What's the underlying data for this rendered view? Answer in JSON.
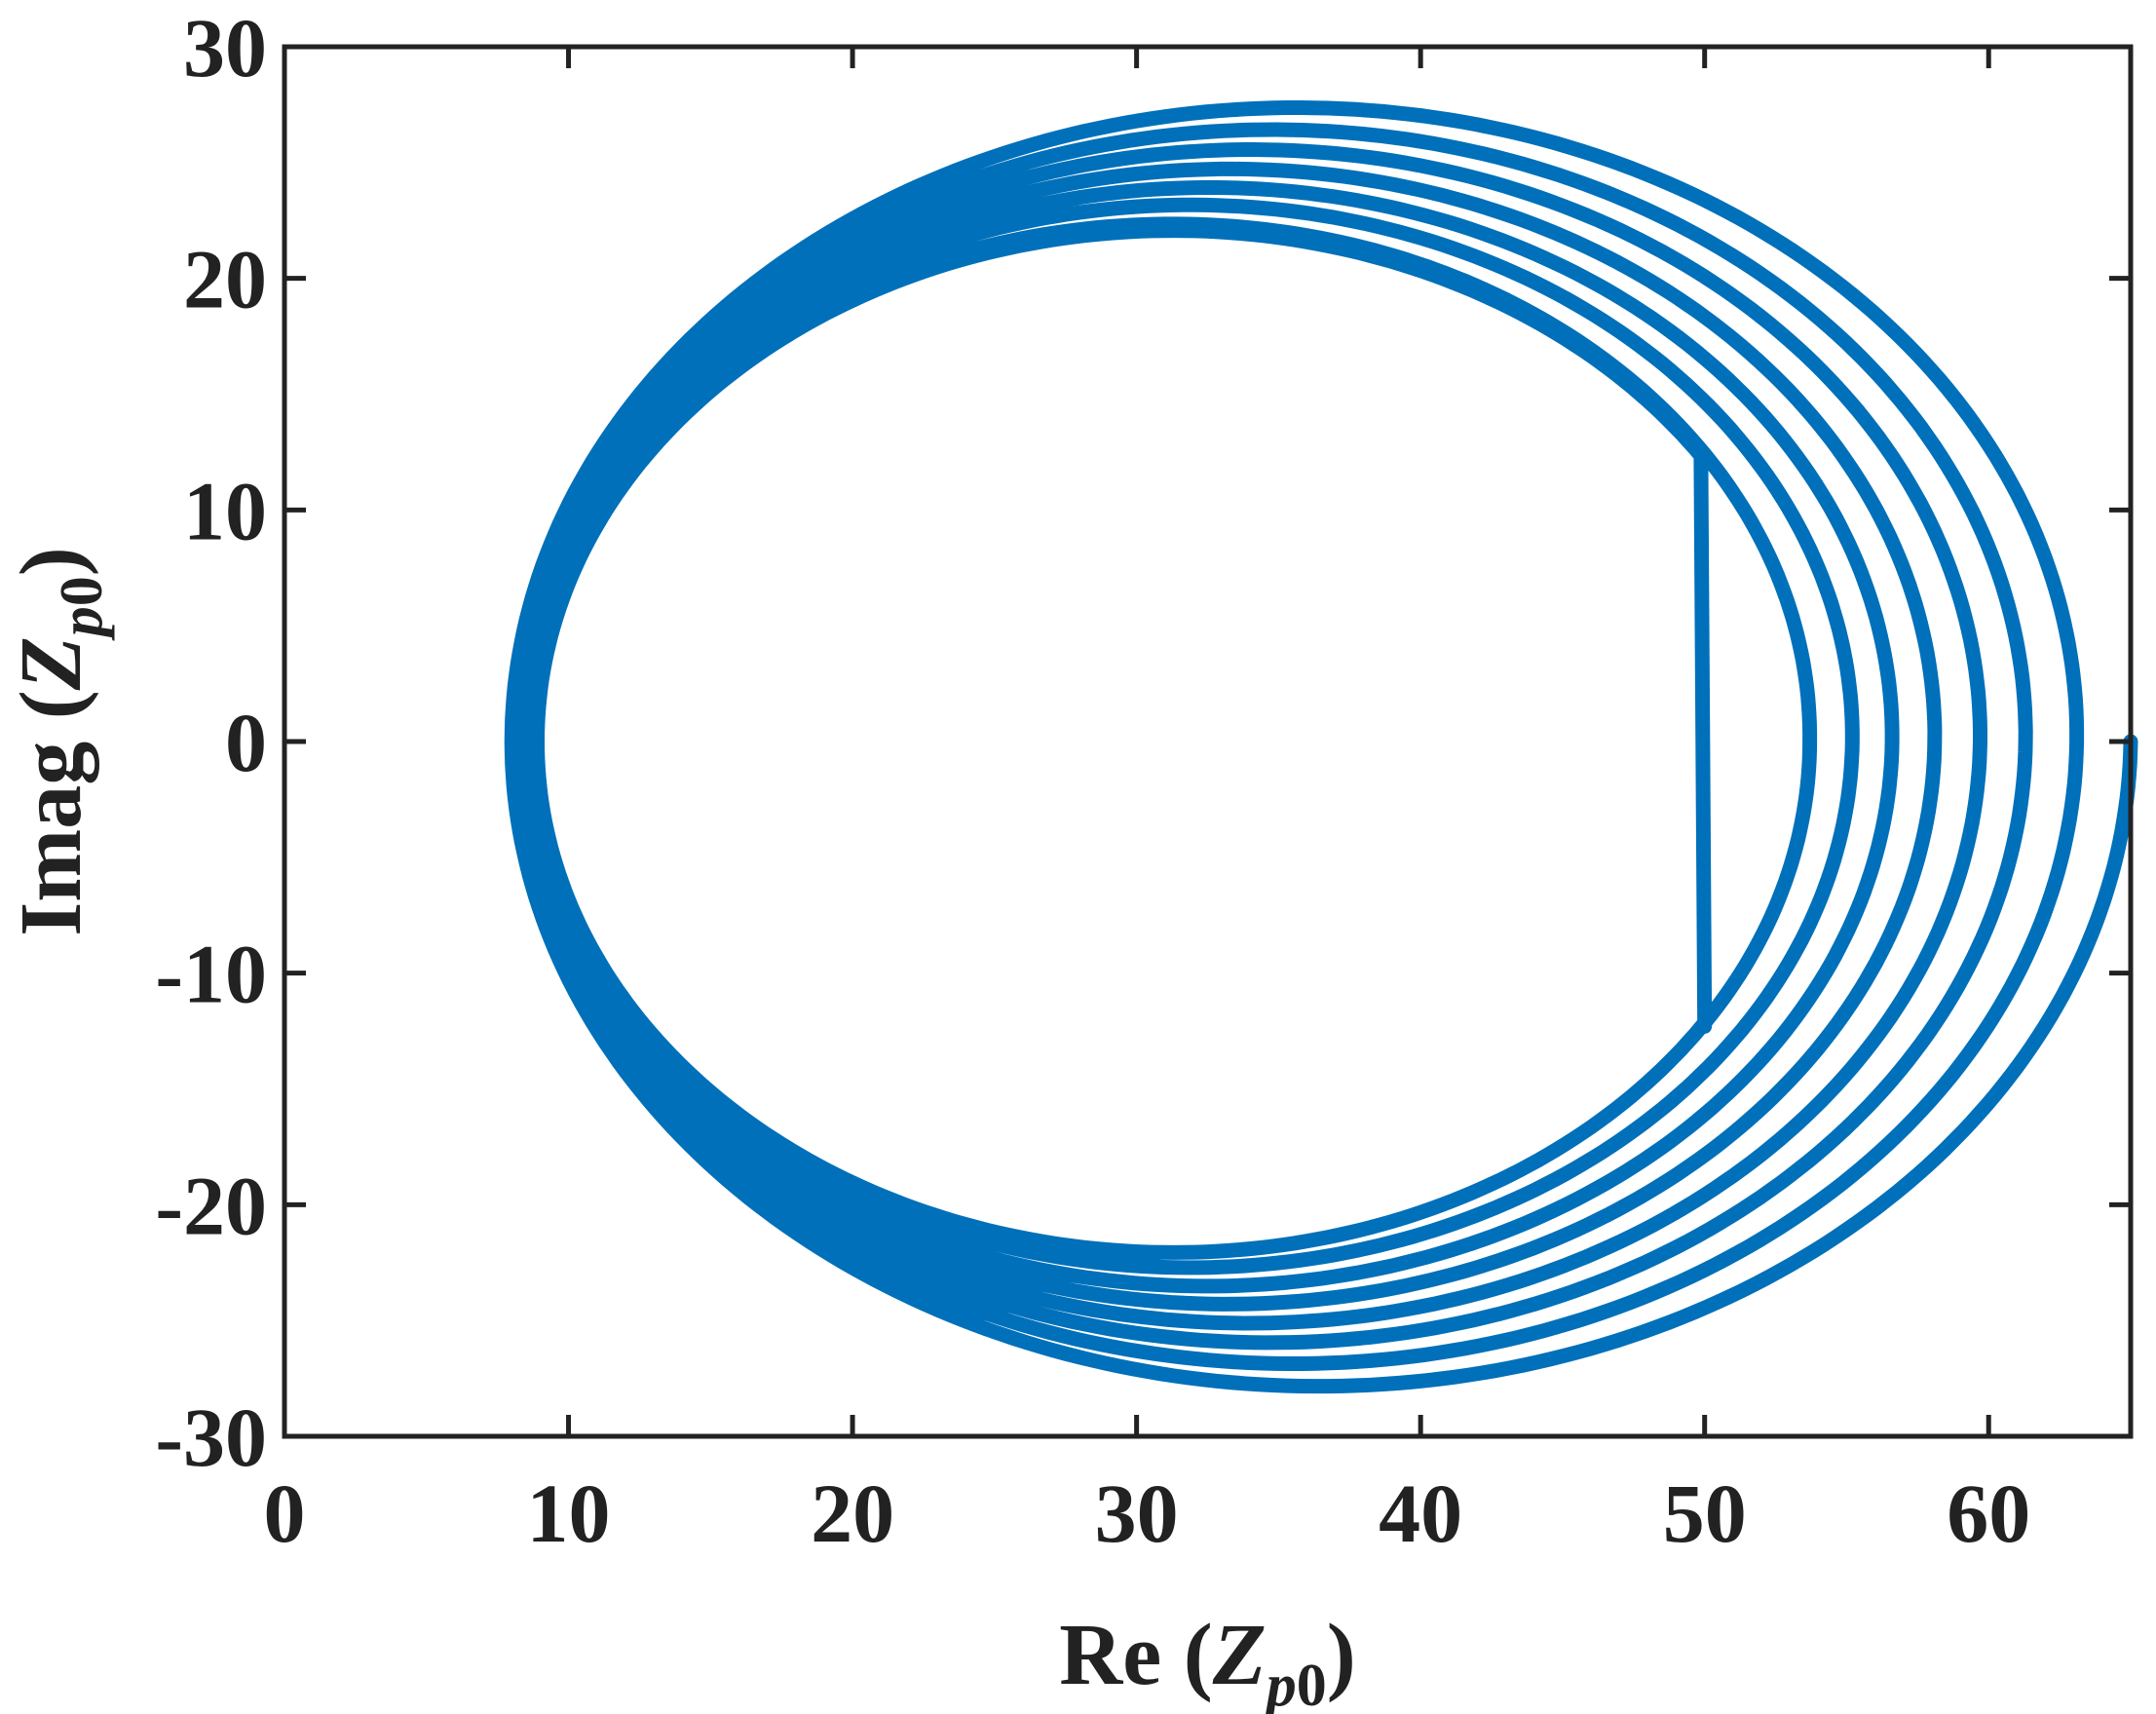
{
  "chart_data": {
    "type": "line",
    "title": "",
    "xlabel": {
      "prefix": "Re (",
      "var": "Z",
      "sub_italic": "p",
      "sub": "0",
      "suffix": ")"
    },
    "ylabel": {
      "prefix": "Imag (",
      "var": "Z",
      "sub_italic": "p",
      "sub": "0",
      "suffix": ")"
    },
    "xlim": [
      0,
      65
    ],
    "ylim": [
      -30,
      30
    ],
    "xticks": [
      0,
      10,
      20,
      30,
      40,
      50,
      60
    ],
    "xtick_labels": [
      "0",
      "10",
      "20",
      "30",
      "40",
      "50",
      "60"
    ],
    "yticks": [
      30,
      20,
      10,
      0,
      -10,
      -20,
      -30
    ],
    "ytick_labels": [
      "30",
      "20",
      "10",
      "0",
      "-10",
      "-20",
      "-30"
    ],
    "grid": false,
    "series": [
      {
        "color": "#0070BA",
        "description_values": {
          "x_start": 65,
          "y_start": 0,
          "x_end": 50,
          "y_end": -12.3,
          "right_crossings_x": [
            65.0,
            63.1,
            61.3,
            59.7,
            58.1,
            56.6,
            55.2,
            53.7
          ],
          "left_crossings_x": [
            8.0,
            8.1,
            8.2,
            8.3,
            8.4,
            8.5,
            8.7,
            8.9,
            9.0,
            9.2
          ]
        }
      }
    ]
  }
}
